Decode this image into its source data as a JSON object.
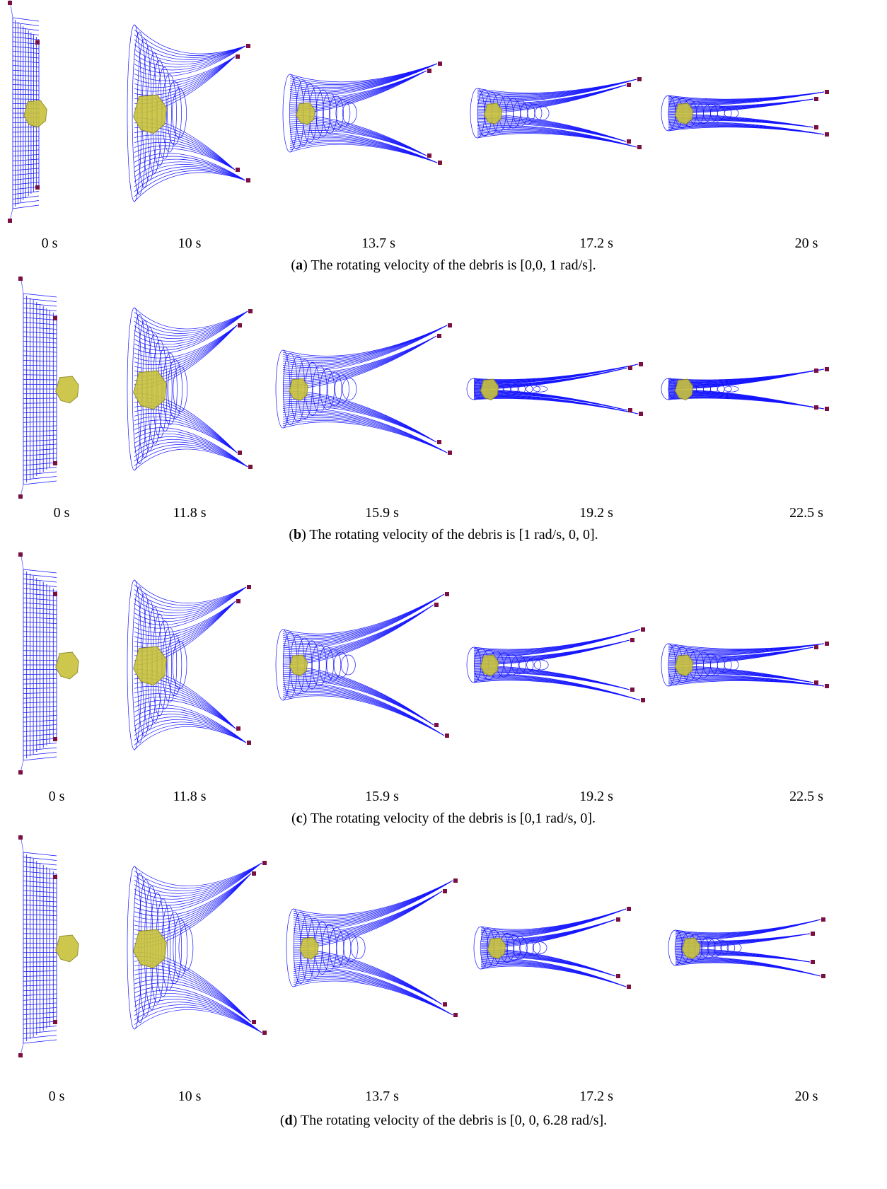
{
  "panels": [
    {
      "times": [
        "0 s",
        "10 s",
        "13.7 s",
        "17.2 s",
        "20 s"
      ],
      "caption": [
        "(",
        "a",
        ") The rotating velocity of the debris is [0,0, 1 rad/s]."
      ]
    },
    {
      "times": [
        "0 s",
        "11.8 s",
        "15.9 s",
        "19.2 s",
        "22.5 s"
      ],
      "caption": [
        "(",
        "b",
        ") The rotating velocity of the debris is [1 rad/s, 0, 0]."
      ]
    },
    {
      "times": [
        "0 s",
        "11.8 s",
        "15.9 s",
        "19.2 s",
        "22.5 s"
      ],
      "caption": [
        "(",
        "c",
        ") The rotating velocity of the debris is [0,1 rad/s, 0]."
      ]
    },
    {
      "times": [
        "0 s",
        "10 s",
        "13.7 s",
        "17.2 s",
        "20 s"
      ],
      "caption": [
        "(",
        "d",
        ") The rotating velocity of the debris is [0, 0, 6.28 rad/s]."
      ]
    }
  ]
}
